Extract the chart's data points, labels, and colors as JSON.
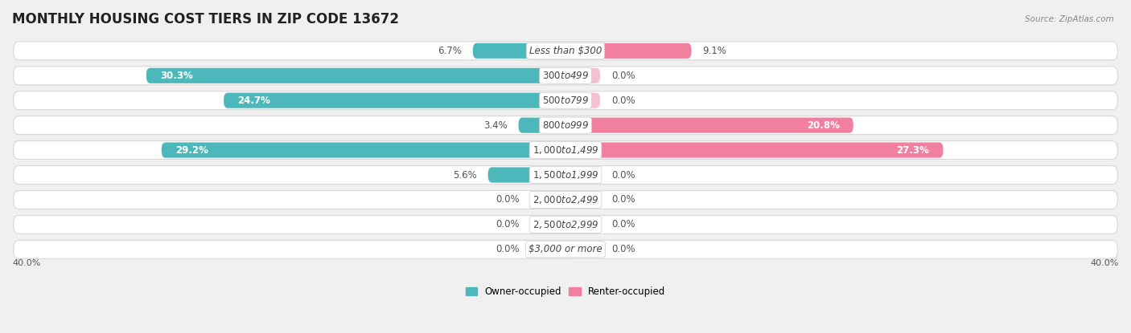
{
  "title": "MONTHLY HOUSING COST TIERS IN ZIP CODE 13672",
  "source": "Source: ZipAtlas.com",
  "categories": [
    "Less than $300",
    "$300 to $499",
    "$500 to $799",
    "$800 to $999",
    "$1,000 to $1,499",
    "$1,500 to $1,999",
    "$2,000 to $2,499",
    "$2,500 to $2,999",
    "$3,000 or more"
  ],
  "owner_values": [
    6.7,
    30.3,
    24.7,
    3.4,
    29.2,
    5.6,
    0.0,
    0.0,
    0.0
  ],
  "renter_values": [
    9.1,
    0.0,
    0.0,
    20.8,
    27.3,
    0.0,
    0.0,
    0.0,
    0.0
  ],
  "owner_color": "#4db8bc",
  "renter_color": "#f07fa0",
  "owner_label": "Owner-occupied",
  "renter_label": "Renter-occupied",
  "axis_limit": 40.0,
  "axis_label_left": "40.0%",
  "axis_label_right": "40.0%",
  "bg_color": "#f0f0f0",
  "row_bg_color": "#ffffff",
  "row_edge_color": "#d8d8d8",
  "title_fontsize": 12,
  "label_fontsize": 8.5,
  "bar_height": 0.62,
  "category_fontsize": 8.5,
  "zero_stub": 2.5
}
